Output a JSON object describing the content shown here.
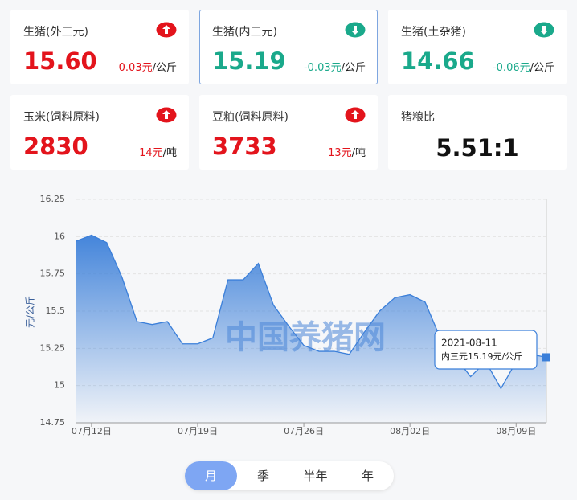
{
  "cards": [
    {
      "title": "生猪(外三元)",
      "value": "15.60",
      "change": "0.03元",
      "unit": "/公斤",
      "trend": "up"
    },
    {
      "title": "生猪(内三元)",
      "value": "15.19",
      "change": "-0.03元",
      "unit": "/公斤",
      "trend": "down",
      "selected": true
    },
    {
      "title": "生猪(土杂猪)",
      "value": "14.66",
      "change": "-0.06元",
      "unit": "/公斤",
      "trend": "down"
    },
    {
      "title": "玉米(饲料原料)",
      "value": "2830",
      "change": "14元",
      "unit": "/吨",
      "trend": "up"
    },
    {
      "title": "豆粕(饲料原料)",
      "value": "3733",
      "change": "13元",
      "unit": "/吨",
      "trend": "up"
    },
    {
      "title": "猪粮比",
      "value": "5.51:1"
    }
  ],
  "chart_data": {
    "type": "area",
    "ylabel": "元/公斤",
    "watermark": "中国养猪网",
    "color": "#3b7fd9",
    "categories": [
      null,
      "07月12日",
      null,
      null,
      null,
      null,
      null,
      null,
      "07月19日",
      null,
      null,
      null,
      null,
      null,
      null,
      "07月26日",
      null,
      null,
      null,
      null,
      null,
      null,
      "08月02日",
      null,
      null,
      null,
      null,
      null,
      null,
      "08月09日",
      null,
      null
    ],
    "values": [
      15.97,
      16.01,
      15.96,
      15.73,
      15.43,
      15.41,
      15.43,
      15.28,
      15.28,
      15.32,
      15.71,
      15.71,
      15.82,
      15.54,
      15.4,
      15.27,
      15.23,
      15.23,
      15.21,
      15.36,
      15.5,
      15.59,
      15.61,
      15.56,
      15.32,
      15.19,
      15.06,
      15.16,
      14.98,
      15.16,
      15.21,
      15.19
    ],
    "ylim": [
      14.75,
      16.25
    ],
    "yticks": [
      14.75,
      15,
      15.25,
      15.5,
      15.75,
      16,
      16.25
    ],
    "grid": true,
    "tooltip": {
      "date": "2021-08-11",
      "text": "内三元15.19元/公斤"
    }
  },
  "tabs": [
    "月",
    "季",
    "半年",
    "年"
  ],
  "active_tab": 0
}
